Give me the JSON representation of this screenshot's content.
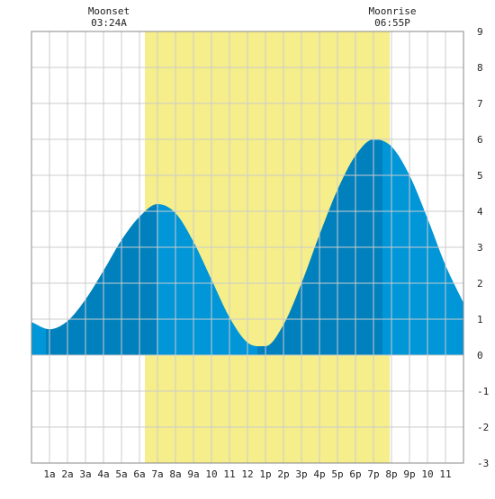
{
  "moon": {
    "moonset_label": "Moonset",
    "moonset_time": "03:24A",
    "moonrise_label": "Moonrise",
    "moonrise_time": "06:55P"
  },
  "chart_data": {
    "type": "area",
    "title": "",
    "xlabel": "",
    "ylabel": "",
    "x_unit": "hours since midnight",
    "xlim": [
      0,
      24
    ],
    "ylim": [
      -3,
      9
    ],
    "grid": true,
    "x_tick_labels": [
      "1a",
      "2a",
      "3a",
      "4a",
      "5a",
      "6a",
      "7a",
      "8a",
      "9a",
      "10",
      "11",
      "12",
      "1p",
      "2p",
      "3p",
      "4p",
      "5p",
      "6p",
      "7p",
      "8p",
      "9p",
      "10",
      "11"
    ],
    "y_tick_labels": [
      "-3",
      "-2",
      "-1",
      "0",
      "1",
      "2",
      "3",
      "4",
      "5",
      "6",
      "7",
      "8",
      "9"
    ],
    "daylight_shading": {
      "start": 6.3,
      "end": 19.9,
      "color": "#f5ee8a"
    },
    "tide_extremes": [
      {
        "type": "low",
        "time": 0.8,
        "height": 0.7
      },
      {
        "type": "high",
        "time": 6.95,
        "height": 4.2
      },
      {
        "type": "low",
        "time": 12.55,
        "height": 0.2
      },
      {
        "type": "high",
        "time": 19.5,
        "height": 6.05
      }
    ],
    "series": [
      {
        "values": [
          {
            "x": 0.0,
            "y": 0.92
          },
          {
            "x": 1.0,
            "y": 0.72
          },
          {
            "x": 2.0,
            "y": 0.95
          },
          {
            "x": 3.0,
            "y": 1.55
          },
          {
            "x": 4.0,
            "y": 2.35
          },
          {
            "x": 5.0,
            "y": 3.2
          },
          {
            "x": 6.0,
            "y": 3.85
          },
          {
            "x": 7.0,
            "y": 4.2
          },
          {
            "x": 8.0,
            "y": 3.95
          },
          {
            "x": 9.0,
            "y": 3.15
          },
          {
            "x": 10.0,
            "y": 2.1
          },
          {
            "x": 11.0,
            "y": 1.05
          },
          {
            "x": 12.0,
            "y": 0.35
          },
          {
            "x": 13.0,
            "y": 0.25
          },
          {
            "x": 14.0,
            "y": 0.85
          },
          {
            "x": 15.0,
            "y": 2.0
          },
          {
            "x": 16.0,
            "y": 3.35
          },
          {
            "x": 17.0,
            "y": 4.6
          },
          {
            "x": 18.0,
            "y": 5.55
          },
          {
            "x": 19.0,
            "y": 6.0
          },
          {
            "x": 20.0,
            "y": 5.8
          },
          {
            "x": 21.0,
            "y": 5.0
          },
          {
            "x": 22.0,
            "y": 3.8
          },
          {
            "x": 23.0,
            "y": 2.5
          },
          {
            "x": 24.0,
            "y": 1.45
          }
        ]
      }
    ],
    "colors": {
      "tide_light": "#0096d8",
      "tide_dark": "#0081bd",
      "grid": "#cccccc",
      "frame": "#888888"
    }
  }
}
